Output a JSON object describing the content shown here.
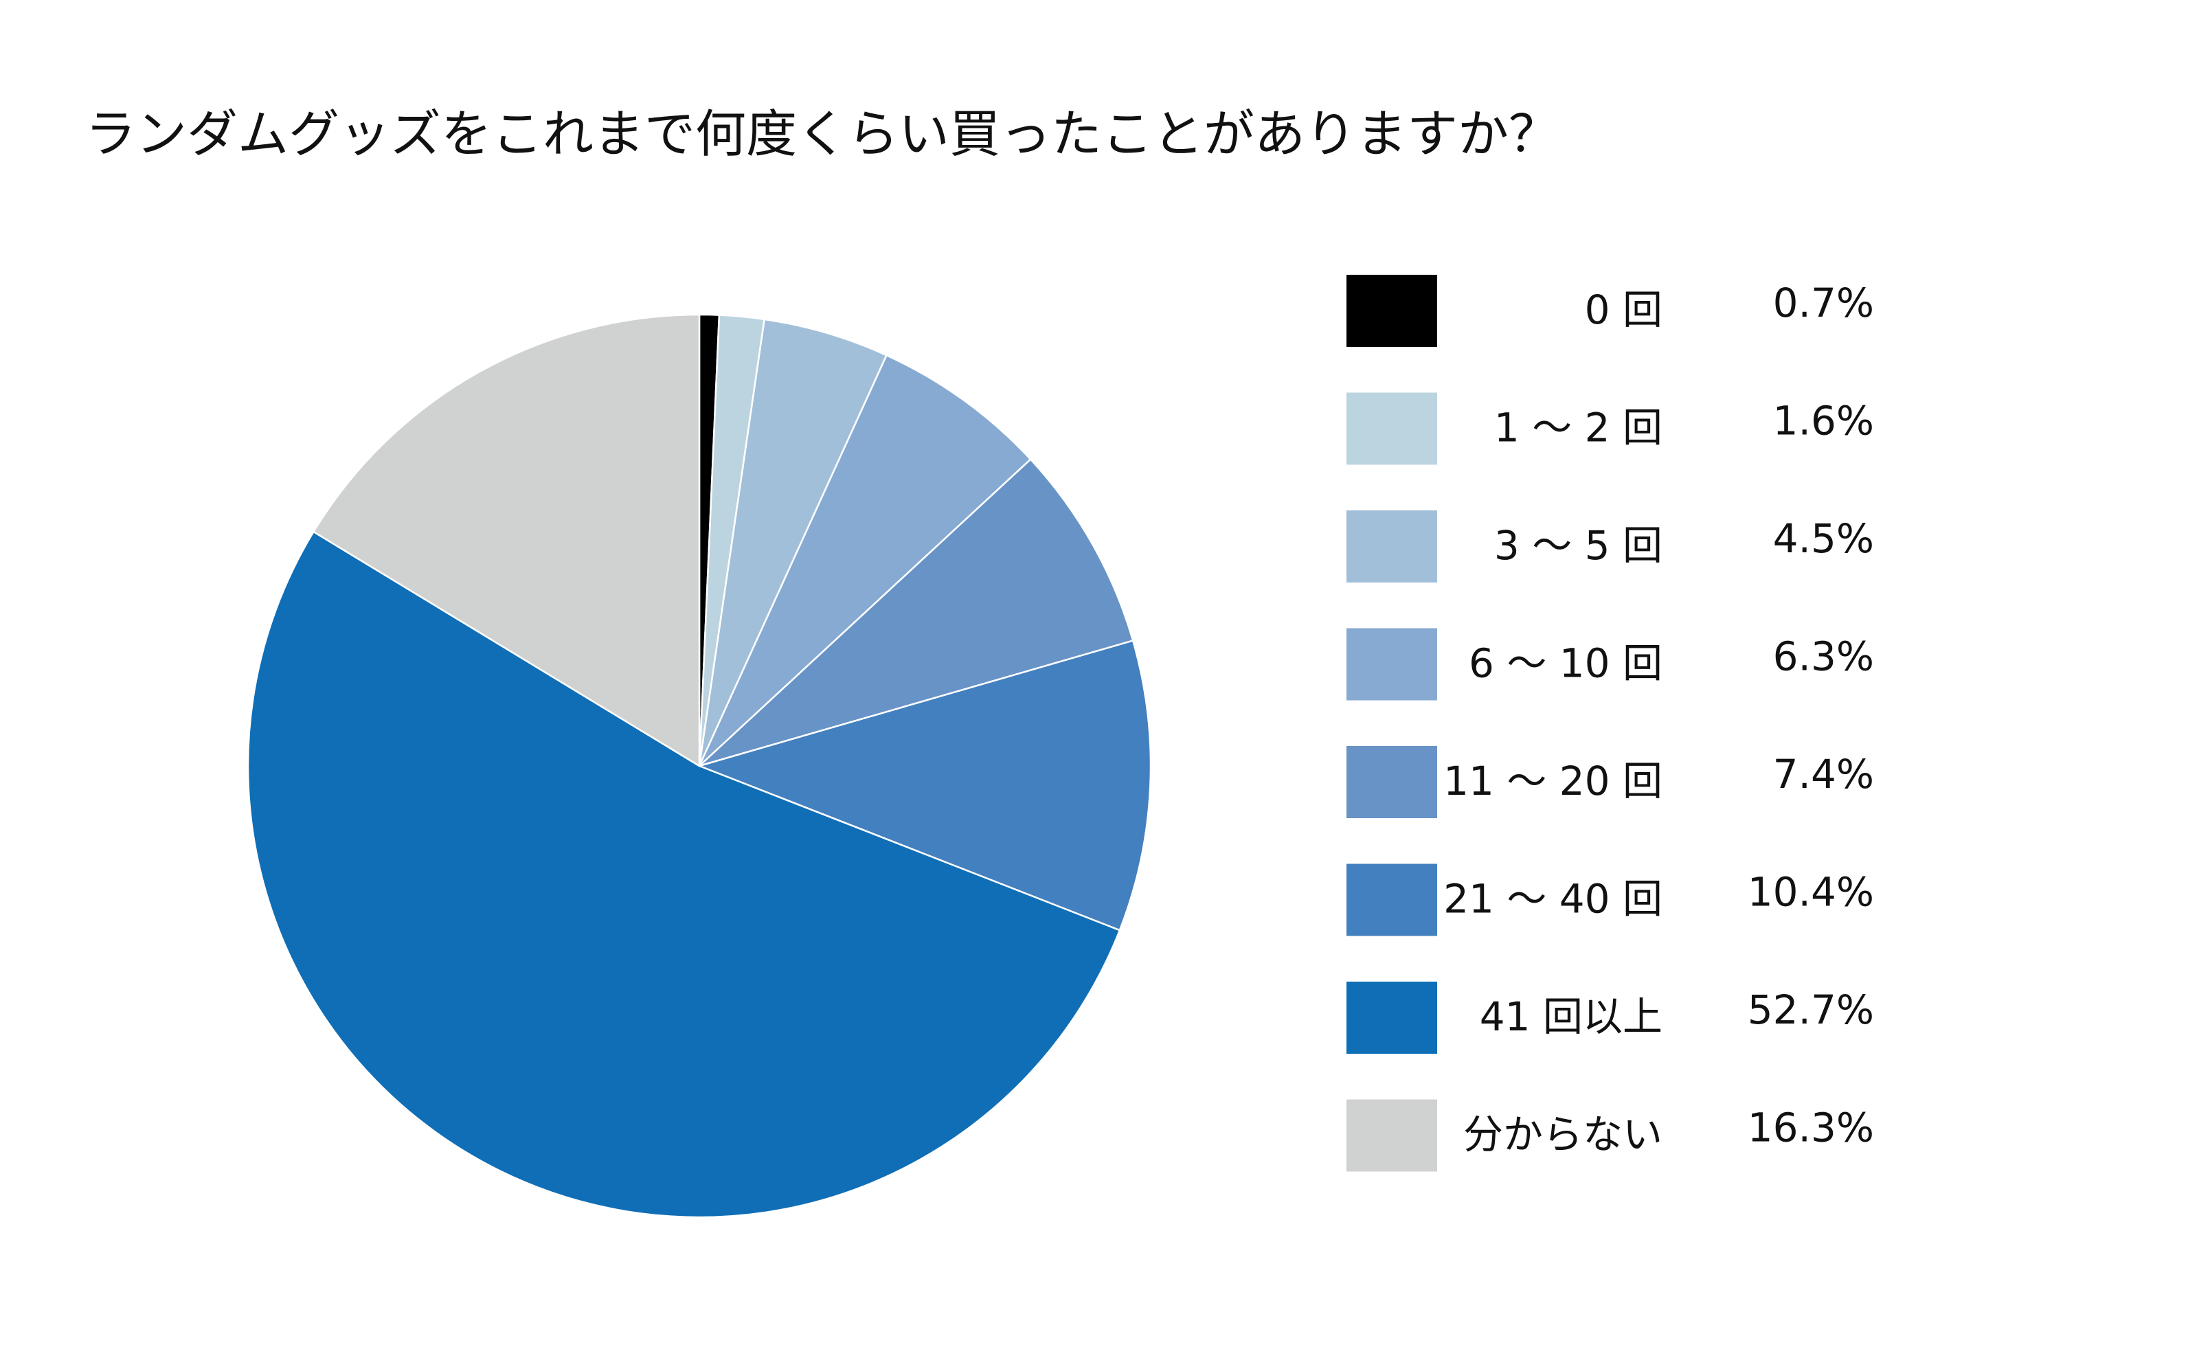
{
  "chart_data": {
    "type": "pie",
    "title": "ランダムグッズをこれまで何度くらい買ったことがありますか？",
    "categories": [
      "0 回",
      "1 〜 2 回",
      "3 〜 5 回",
      "6 〜 10 回",
      "11 〜 20 回",
      "21 〜 40 回",
      "41 回以上",
      "分からない"
    ],
    "values": [
      0.7,
      1.6,
      4.5,
      6.3,
      7.4,
      10.4,
      52.7,
      16.3
    ],
    "value_labels": [
      "0.7%",
      "1.6%",
      "4.5%",
      "6.3%",
      "7.4%",
      "10.4%",
      "52.7%",
      "16.3%"
    ],
    "colors": [
      "#000000",
      "#bcd4e0",
      "#a2bfd9",
      "#86aad2",
      "#6893c6",
      "#4380bf",
      "#0f6eb6",
      "#d0d1d1"
    ]
  }
}
